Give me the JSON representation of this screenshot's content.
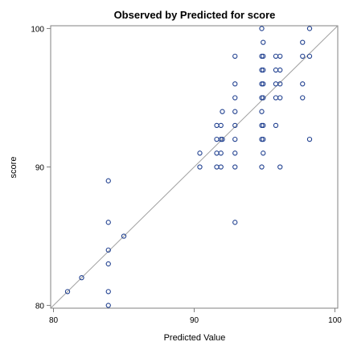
{
  "chart_data": {
    "type": "scatter",
    "title": "Observed by Predicted for score",
    "xlabel": "Predicted Value",
    "ylabel": "score",
    "xlim": [
      79.8,
      100.2
    ],
    "ylim": [
      79.8,
      100.2
    ],
    "xticks": [
      "80",
      "90",
      "100"
    ],
    "yticks": [
      "80",
      "90",
      "100"
    ],
    "reference_line": "y = x",
    "grid": false,
    "legend": "none",
    "colors": {
      "marker": "#1f3f8f",
      "reference_line": "#a0a0a0",
      "frame": "#808080"
    },
    "series": [
      {
        "points": [
          [
            81,
            81
          ],
          [
            82,
            82
          ],
          [
            83.9,
            80
          ],
          [
            83.9,
            81
          ],
          [
            83.9,
            83
          ],
          [
            83.9,
            84
          ],
          [
            83.9,
            86
          ],
          [
            83.9,
            89
          ],
          [
            85,
            85
          ],
          [
            90.4,
            90
          ],
          [
            90.4,
            91
          ],
          [
            91.6,
            90
          ],
          [
            91.6,
            91
          ],
          [
            91.6,
            92
          ],
          [
            91.6,
            93
          ],
          [
            91.9,
            90
          ],
          [
            91.9,
            91
          ],
          [
            91.9,
            92
          ],
          [
            91.9,
            93
          ],
          [
            92,
            92
          ],
          [
            92,
            94
          ],
          [
            92.9,
            86
          ],
          [
            92.9,
            90
          ],
          [
            92.9,
            91
          ],
          [
            92.9,
            92
          ],
          [
            92.9,
            93
          ],
          [
            92.9,
            94
          ],
          [
            92.9,
            95
          ],
          [
            92.9,
            96
          ],
          [
            92.9,
            98
          ],
          [
            94.8,
            90
          ],
          [
            94.8,
            92
          ],
          [
            94.8,
            93
          ],
          [
            94.8,
            94
          ],
          [
            94.8,
            95
          ],
          [
            94.8,
            96
          ],
          [
            94.8,
            97
          ],
          [
            94.8,
            98
          ],
          [
            94.8,
            100
          ],
          [
            94.9,
            91
          ],
          [
            94.9,
            92
          ],
          [
            94.9,
            93
          ],
          [
            94.9,
            95
          ],
          [
            94.9,
            96
          ],
          [
            94.9,
            97
          ],
          [
            94.9,
            98
          ],
          [
            94.9,
            99
          ],
          [
            95.8,
            93
          ],
          [
            95.8,
            95
          ],
          [
            95.8,
            96
          ],
          [
            95.8,
            97
          ],
          [
            95.8,
            98
          ],
          [
            96.1,
            90
          ],
          [
            96.1,
            95
          ],
          [
            96.1,
            96
          ],
          [
            96.1,
            97
          ],
          [
            96.1,
            98
          ],
          [
            97.7,
            95
          ],
          [
            97.7,
            96
          ],
          [
            97.7,
            98
          ],
          [
            97.7,
            99
          ],
          [
            98.2,
            92
          ],
          [
            98.2,
            98
          ],
          [
            98.2,
            100
          ]
        ]
      }
    ]
  }
}
